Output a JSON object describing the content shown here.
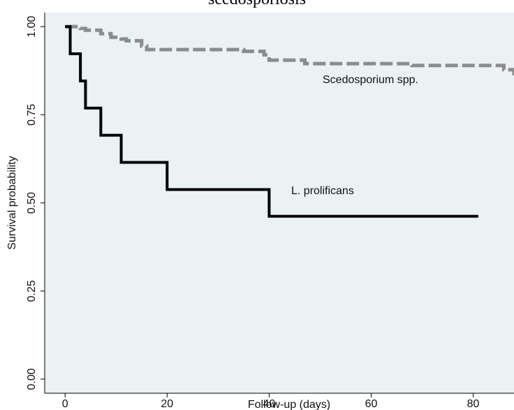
{
  "chart_data": {
    "type": "line",
    "title": "scedosporiosis",
    "xlabel": "Follow-up (days)",
    "ylabel": "Survival probability",
    "xlim": [
      -4,
      88
    ],
    "ylim": [
      -0.04,
      1.04
    ],
    "x_ticks": [
      "0",
      "20",
      "40",
      "60",
      "80"
    ],
    "y_ticks": [
      "0.00",
      "0.25",
      "0.50",
      "0.75",
      "1.00"
    ],
    "grid": false,
    "series": [
      {
        "name": "Scedosporium spp.",
        "style": "dashed",
        "color": "#8c8c8c",
        "x": [
          0,
          3,
          4,
          7,
          9,
          11,
          12,
          15,
          16,
          35,
          39,
          40,
          47,
          68,
          86,
          88
        ],
        "y": [
          1.0,
          0.995,
          0.99,
          0.98,
          0.97,
          0.965,
          0.96,
          0.945,
          0.935,
          0.93,
          0.92,
          0.905,
          0.895,
          0.89,
          0.878,
          0.862
        ]
      },
      {
        "name": "L. prolificans",
        "style": "solid",
        "color": "#000000",
        "x": [
          0,
          1,
          3,
          4,
          7,
          11,
          20,
          40,
          81
        ],
        "y": [
          1.0,
          0.923,
          0.846,
          0.769,
          0.692,
          0.615,
          0.538,
          0.462,
          0.462
        ]
      }
    ],
    "colors": {
      "plot_background": "#eaf2f3",
      "axis": "#000000"
    }
  }
}
